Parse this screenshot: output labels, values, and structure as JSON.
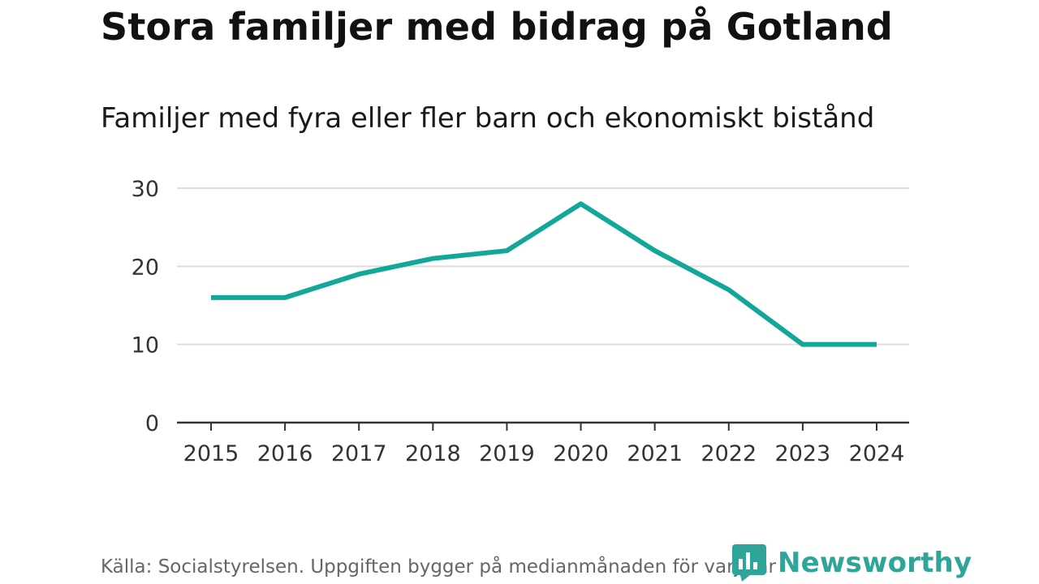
{
  "header": {
    "title": "Stora familjer med bidrag på Gotland",
    "subtitle": "Familjer med fyra eller fler barn och ekonomiskt bistånd"
  },
  "chart_data": {
    "type": "line",
    "title": "Familjer med fyra eller fler barn och ekonomiskt bistånd",
    "xlabel": "",
    "ylabel": "",
    "categories": [
      "2015",
      "2016",
      "2017",
      "2018",
      "2019",
      "2020",
      "2021",
      "2022",
      "2023",
      "2024"
    ],
    "series": [
      {
        "name": "Familjer",
        "values": [
          16,
          16,
          19,
          21,
          22,
          28,
          22,
          17,
          10,
          10
        ]
      }
    ],
    "ylim": [
      0,
      30
    ],
    "yticks": [
      0,
      10,
      20,
      30
    ],
    "grid": true,
    "line_color": "#13a79a"
  },
  "footer": {
    "source": "Källa: Socialstyrelsen. Uppgiften bygger på medianmånaden för varje år",
    "brand": "Newsworthy",
    "brand_color": "#2fa59a"
  }
}
